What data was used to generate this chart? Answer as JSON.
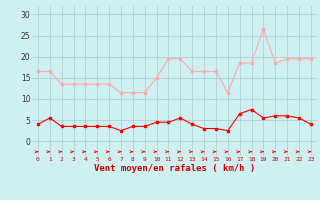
{
  "hours": [
    0,
    1,
    2,
    3,
    4,
    5,
    6,
    7,
    8,
    9,
    10,
    11,
    12,
    13,
    14,
    15,
    16,
    17,
    18,
    19,
    20,
    21,
    22,
    23
  ],
  "wind_avg": [
    4,
    5.5,
    3.5,
    3.5,
    3.5,
    3.5,
    3.5,
    2.5,
    3.5,
    3.5,
    4.5,
    4.5,
    5.5,
    4,
    3,
    3,
    2.5,
    6.5,
    7.5,
    5.5,
    6,
    6,
    5.5,
    4
  ],
  "wind_gust": [
    16.5,
    16.5,
    13.5,
    13.5,
    13.5,
    13.5,
    13.5,
    11.5,
    11.5,
    11.5,
    15,
    19.5,
    19.5,
    16.5,
    16.5,
    16.5,
    11.5,
    18.5,
    18.5,
    26.5,
    18.5,
    19.5,
    19.5,
    19.5
  ],
  "color_avg": "#ff0000",
  "color_gust": "#ffaaaa",
  "background": "#cff0f0",
  "grid_color": "#aacccc",
  "xlabel": "Vent moyen/en rafales ( km/h )",
  "yticks": [
    0,
    5,
    10,
    15,
    20,
    25,
    30
  ],
  "ylim": [
    -3.5,
    32
  ],
  "xlim": [
    -0.5,
    23.5
  ]
}
